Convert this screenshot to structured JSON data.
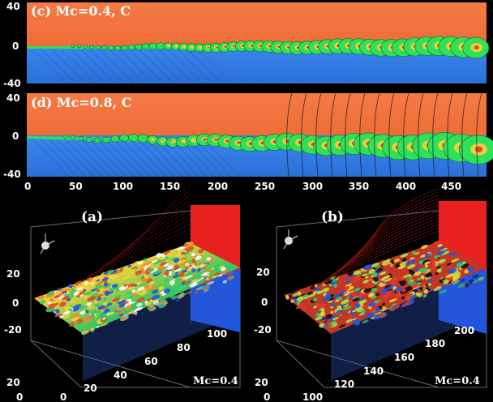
{
  "panel_c": {
    "label": "(c) Mc=0.4, C"
  },
  "panel_d": {
    "label": "(d) Mc=0.8, C"
  },
  "panel_a": {
    "label": "(a)",
    "mc": "Mc=0.4"
  },
  "panel_b": {
    "label": "(b)",
    "mc": "Mc=0.4"
  },
  "colors": {
    "upper_stream": "#f0703a",
    "lower_stream": "#2f7fe8",
    "shear_layer": "#2ee05a"
  },
  "chart_data": [
    {
      "type": "heatmap",
      "title": "(c) Mc=0.4, C",
      "x_ticks": [
        "0",
        "50",
        "100",
        "150",
        "200",
        "250",
        "300",
        "350",
        "400",
        "450"
      ],
      "y_ticks": [
        "40",
        "0",
        "-40"
      ]
    },
    {
      "type": "heatmap",
      "title": "(d) Mc=0.8, C",
      "x_ticks": [
        "0",
        "50",
        "100",
        "150",
        "200",
        "250",
        "300",
        "350",
        "400",
        "450"
      ],
      "y_ticks": [
        "40",
        "0",
        "-40"
      ]
    },
    {
      "type": "heatmap",
      "title": "(a)",
      "annotation": "Mc=0.4",
      "x_ticks": [
        "0",
        "20",
        "40",
        "60",
        "80",
        "100"
      ],
      "y_ticks": [
        "20",
        "0",
        "-20"
      ],
      "z_ticks": [
        "0",
        "20"
      ]
    },
    {
      "type": "heatmap",
      "title": "(b)",
      "annotation": "Mc=0.4",
      "x_ticks": [
        "100",
        "120",
        "140",
        "160",
        "180",
        "200"
      ],
      "y_ticks": [
        "20",
        "0",
        "-20"
      ],
      "z_ticks": [
        "0",
        "20"
      ]
    }
  ]
}
